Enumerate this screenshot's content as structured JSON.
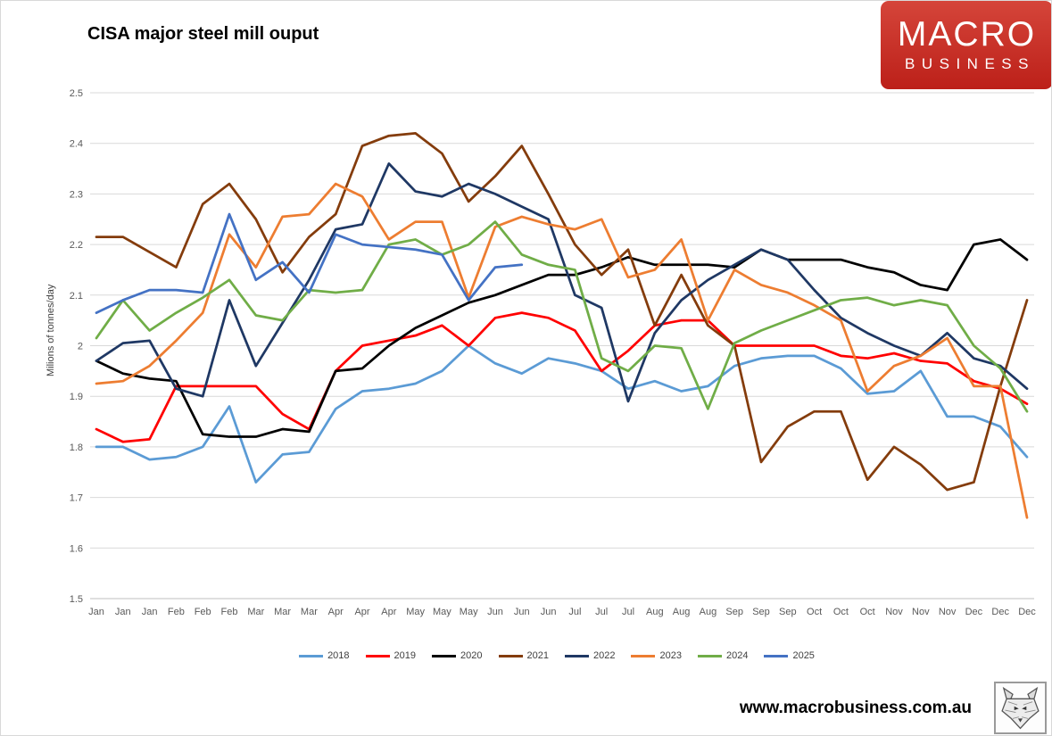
{
  "title": "CISA major steel mill ouput",
  "logo": {
    "line1": "MACRO",
    "line2": "BUSINESS"
  },
  "footer": {
    "url": "www.macrobusiness.com.au",
    "logo_icon": "fox-sketch-icon"
  },
  "colors": {
    "logo_red_top": "#d5453a",
    "logo_red_bottom": "#bc2019",
    "gridline": "#d9d9d9",
    "axis_line": "#bfbfbf",
    "tick_text": "#595959"
  },
  "chart_data": {
    "type": "line",
    "title": "CISA major steel mill ouput",
    "xlabel": "",
    "ylabel": "Milions of tonnes/day",
    "ylim": [
      1.5,
      2.5
    ],
    "y_tick_labels": [
      "2.5",
      "2.4",
      "2.3",
      "2.2",
      "2.1",
      "2",
      "1.9",
      "1.8",
      "1.7",
      "1.6",
      "1.5"
    ],
    "grid": true,
    "legend_position": "bottom",
    "x_labels": [
      "Jan",
      "Jan",
      "Jan",
      "Feb",
      "Feb",
      "Feb",
      "Mar",
      "Mar",
      "Mar",
      "Apr",
      "Apr",
      "Apr",
      "May",
      "May",
      "May",
      "Jun",
      "Jun",
      "Jun",
      "Jul",
      "Jul",
      "Jul",
      "Aug",
      "Aug",
      "Aug",
      "Sep",
      "Sep",
      "Sep",
      "Oct",
      "Oct",
      "Oct",
      "Nov",
      "Nov",
      "Nov",
      "Dec",
      "Dec",
      "Dec"
    ],
    "series": [
      {
        "name": "2018",
        "color": "#5B9BD5",
        "values": [
          1.8,
          1.8,
          1.775,
          1.78,
          1.8,
          1.88,
          1.73,
          1.785,
          1.79,
          1.875,
          1.91,
          1.915,
          1.925,
          1.95,
          2.0,
          1.965,
          1.945,
          1.975,
          1.965,
          1.95,
          1.915,
          1.93,
          1.91,
          1.92,
          1.96,
          1.975,
          1.98,
          1.98,
          1.955,
          1.905,
          1.91,
          1.95,
          1.86,
          1.86,
          1.84,
          1.78
        ]
      },
      {
        "name": "2019",
        "color": "#FF0000",
        "values": [
          1.835,
          1.81,
          1.815,
          1.92,
          1.92,
          1.92,
          1.92,
          1.865,
          1.835,
          1.95,
          2.0,
          2.01,
          2.02,
          2.04,
          2.0,
          2.055,
          2.065,
          2.055,
          2.03,
          1.95,
          1.99,
          2.04,
          2.05,
          2.05,
          2.0,
          2.0,
          2.0,
          2.0,
          1.98,
          1.975,
          1.985,
          1.97,
          1.965,
          1.93,
          1.915,
          1.885
        ]
      },
      {
        "name": "2020",
        "color": "#000000",
        "values": [
          1.97,
          1.945,
          1.935,
          1.93,
          1.825,
          1.82,
          1.82,
          1.835,
          1.83,
          1.95,
          1.955,
          2.0,
          2.035,
          2.06,
          2.085,
          2.1,
          2.12,
          2.14,
          2.14,
          2.155,
          2.175,
          2.16,
          2.16,
          2.16,
          2.155,
          2.19,
          2.17,
          2.17,
          2.17,
          2.155,
          2.145,
          2.12,
          2.11,
          2.2,
          2.21,
          2.17
        ]
      },
      {
        "name": "2021",
        "color": "#843C0C",
        "values": [
          2.215,
          2.215,
          2.185,
          2.155,
          2.28,
          2.32,
          2.25,
          2.145,
          2.215,
          2.26,
          2.395,
          2.415,
          2.42,
          2.38,
          2.285,
          2.335,
          2.395,
          2.3,
          2.2,
          2.14,
          2.19,
          2.04,
          2.14,
          2.04,
          2.0,
          1.77,
          1.84,
          1.87,
          1.87,
          1.735,
          1.8,
          1.765,
          1.715,
          1.73,
          1.92,
          2.09
        ]
      },
      {
        "name": "2022",
        "color": "#1F3864",
        "values": [
          1.97,
          2.005,
          2.01,
          1.915,
          1.9,
          2.09,
          1.96,
          2.045,
          2.13,
          2.23,
          2.24,
          2.36,
          2.305,
          2.295,
          2.32,
          2.3,
          2.275,
          2.25,
          2.1,
          2.075,
          1.89,
          2.025,
          2.09,
          2.13,
          2.16,
          2.19,
          2.17,
          2.11,
          2.055,
          2.025,
          2.0,
          1.98,
          2.025,
          1.975,
          1.96,
          1.915
        ]
      },
      {
        "name": "2023",
        "color": "#ED7D31",
        "values": [
          1.925,
          1.93,
          1.96,
          2.01,
          2.065,
          2.22,
          2.155,
          2.255,
          2.26,
          2.32,
          2.295,
          2.21,
          2.245,
          2.245,
          2.095,
          2.235,
          2.255,
          2.24,
          2.23,
          2.25,
          2.135,
          2.15,
          2.21,
          2.05,
          2.15,
          2.12,
          2.105,
          2.08,
          2.05,
          1.91,
          1.96,
          1.98,
          2.015,
          1.92,
          1.92,
          1.66
        ]
      },
      {
        "name": "2024",
        "color": "#70AD47",
        "values": [
          2.015,
          2.09,
          2.03,
          2.065,
          2.095,
          2.13,
          2.06,
          2.05,
          2.11,
          2.105,
          2.11,
          2.2,
          2.21,
          2.18,
          2.2,
          2.245,
          2.18,
          2.16,
          2.15,
          1.975,
          1.95,
          2.0,
          1.995,
          1.875,
          2.005,
          2.03,
          2.05,
          2.07,
          2.09,
          2.095,
          2.08,
          2.09,
          2.08,
          2.0,
          1.955,
          1.87
        ]
      },
      {
        "name": "2025",
        "color": "#4472C4",
        "values": [
          2.065,
          2.09,
          2.11,
          2.11,
          2.105,
          2.26,
          2.13,
          2.165,
          2.105,
          2.22,
          2.2,
          2.195,
          2.19,
          2.18,
          2.09,
          2.155,
          2.16
        ]
      }
    ]
  }
}
